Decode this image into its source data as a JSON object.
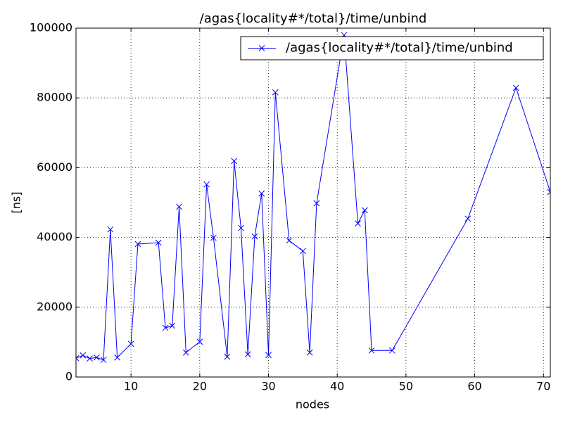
{
  "chart_data": {
    "type": "line",
    "title": "/agas{locality#*/total}/time/unbind",
    "x_label": "nodes",
    "y_label": "[ns]",
    "x": [
      2,
      3,
      4,
      5,
      6,
      7,
      8,
      10,
      11,
      14,
      15,
      16,
      17,
      18,
      20,
      21,
      22,
      24,
      25,
      26,
      27,
      28,
      29,
      30,
      31,
      33,
      35,
      36,
      37,
      41,
      43,
      44,
      45,
      48,
      59,
      66,
      71
    ],
    "series": [
      {
        "name": "/agas{locality#*/total}/time/unbind",
        "color": "#0000ff",
        "marker": "x",
        "values": [
          5400,
          6200,
          5300,
          5600,
          4900,
          42300,
          5600,
          9500,
          38100,
          38500,
          14100,
          14700,
          48800,
          7000,
          10100,
          55200,
          39900,
          5800,
          61900,
          42700,
          6500,
          40300,
          52600,
          6300,
          81600,
          39100,
          36100,
          7000,
          49800,
          98000,
          44000,
          47800,
          7600,
          7600,
          45400,
          82900,
          53000
        ]
      }
    ],
    "xlim": [
      2,
      71
    ],
    "xticks": [
      10,
      20,
      30,
      40,
      50,
      60,
      70
    ],
    "ylim": [
      0,
      100000
    ],
    "yticks": [
      0,
      20000,
      40000,
      60000,
      80000,
      100000
    ],
    "grid": true,
    "legend": "upper right"
  }
}
